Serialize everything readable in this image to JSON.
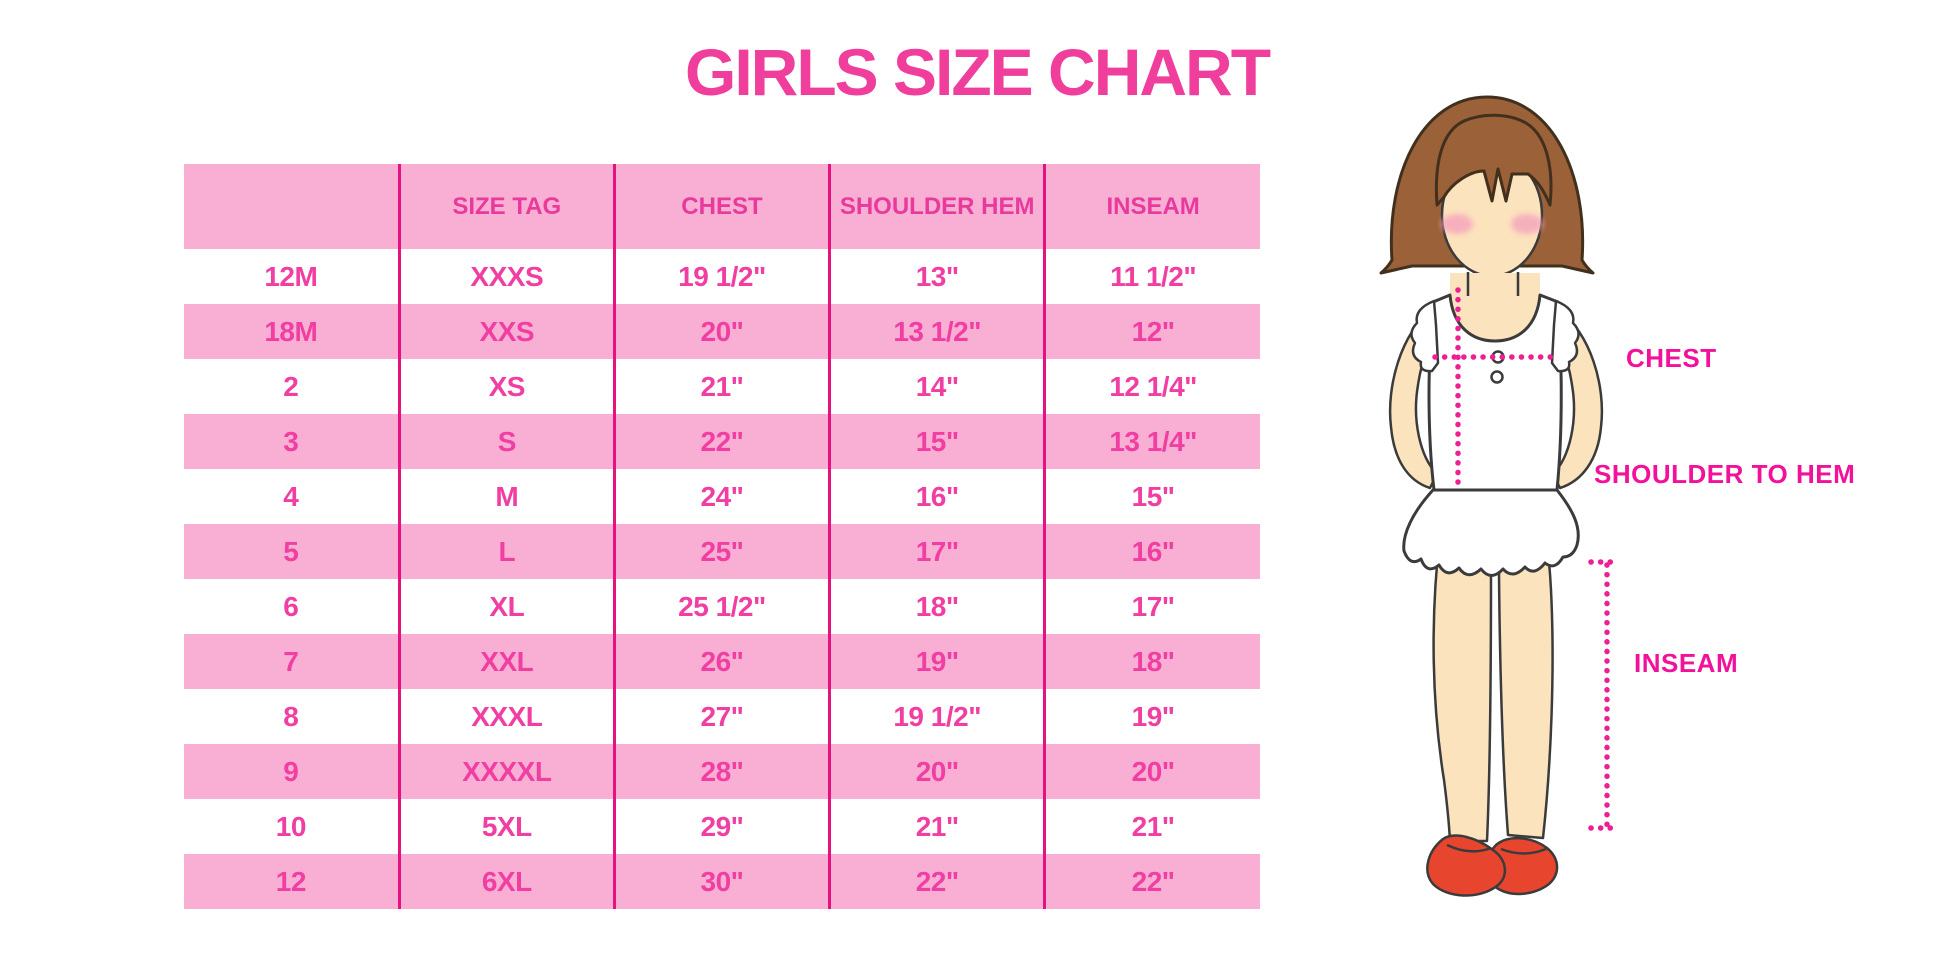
{
  "title": "GIRLS SIZE CHART",
  "figure": {
    "description": "cartoon girl with bob haircut, white sleeveless top, ruffle skirt and red mary-jane shoes, annotated with dotted measurement lines",
    "labels": {
      "chest": "CHEST",
      "shoulder_to_hem": "SHOULDER TO HEM",
      "inseam": "INSEAM"
    }
  },
  "colors": {
    "title_pink": "#EF3E9B",
    "row_pink": "#F9AFD3",
    "column_rule_magenta": "#E5137F",
    "header_text_pink": "#E83A9D",
    "cell_text_pink": "#F13EA3",
    "label_magenta": "#F2119B",
    "dotted_line_magenta": "#ED1E96",
    "hair_brown": "#9B6138",
    "skin_tone": "#FBE3BD",
    "blush_pink": "#F5A3BC",
    "shoe_red": "#E8452F",
    "outline_dark": "#3b3b3b"
  },
  "chart_data": {
    "type": "table",
    "title": "GIRLS SIZE CHART",
    "columns": [
      "",
      "SIZE TAG",
      "CHEST",
      "SHOULDER HEM",
      "INSEAM"
    ],
    "rows": [
      [
        "12M",
        "XXXS",
        "19 1/2\"",
        "13\"",
        "11 1/2\""
      ],
      [
        "18M",
        "XXS",
        "20\"",
        "13 1/2\"",
        "12\""
      ],
      [
        "2",
        "XS",
        "21\"",
        "14\"",
        "12 1/4\""
      ],
      [
        "3",
        "S",
        "22\"",
        "15\"",
        "13 1/4\""
      ],
      [
        "4",
        "M",
        "24\"",
        "16\"",
        "15\""
      ],
      [
        "5",
        "L",
        "25\"",
        "17\"",
        "16\""
      ],
      [
        "6",
        "XL",
        "25 1/2\"",
        "18\"",
        "17\""
      ],
      [
        "7",
        "XXL",
        "26\"",
        "19\"",
        "18\""
      ],
      [
        "8",
        "XXXL",
        "27\"",
        "19 1/2\"",
        "19\""
      ],
      [
        "9",
        "XXXXL",
        "28\"",
        "20\"",
        "20\""
      ],
      [
        "10",
        "5XL",
        "29\"",
        "21\"",
        "21\""
      ],
      [
        "12",
        "6XL",
        "30\"",
        "22\"",
        "22\""
      ]
    ],
    "layout": {
      "grid": "vertical column separators only",
      "striping": "header pink, data rows alternate white then pink",
      "legend_position": "none"
    }
  }
}
